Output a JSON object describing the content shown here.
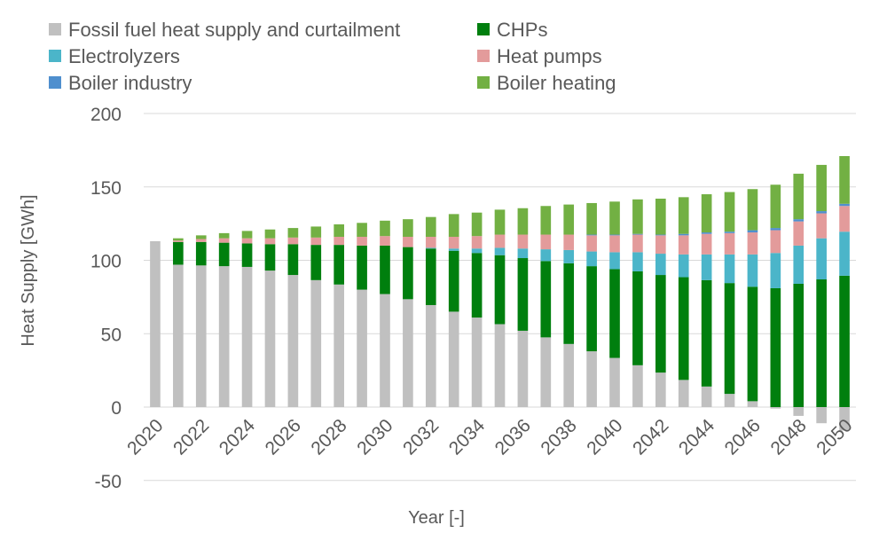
{
  "chart_data": {
    "type": "bar",
    "stacked": true,
    "title": "",
    "xlabel": "Year [-]",
    "ylabel": "Heat Supply [GWh]",
    "ylim": [
      -50,
      200
    ],
    "yticks": [
      -50,
      0,
      50,
      100,
      150,
      200
    ],
    "grid": true,
    "legend_position": "top",
    "categories": [
      "2020",
      "2021",
      "2022",
      "2023",
      "2024",
      "2025",
      "2026",
      "2027",
      "2028",
      "2029",
      "2030",
      "2031",
      "2032",
      "2033",
      "2034",
      "2035",
      "2036",
      "2037",
      "2038",
      "2039",
      "2040",
      "2041",
      "2042",
      "2043",
      "2044",
      "2045",
      "2046",
      "2047",
      "2048",
      "2049",
      "2050"
    ],
    "xtick_labels": [
      "2020",
      "2022",
      "2024",
      "2026",
      "2028",
      "2030",
      "2032",
      "2034",
      "2036",
      "2038",
      "2040",
      "2042",
      "2044",
      "2046",
      "2048",
      "2050"
    ],
    "series": [
      {
        "name": "Fossil fuel heat supply and curtailment",
        "color": "#c0c0c0",
        "values": [
          113,
          97,
          96.5,
          96,
          95.5,
          93,
          90,
          86.5,
          83.5,
          80,
          77,
          73.5,
          69.5,
          65,
          61,
          56.5,
          52,
          47.5,
          43,
          38,
          33.5,
          28.5,
          23.5,
          18.5,
          14,
          9,
          4,
          -1,
          -6,
          -11,
          -16
        ]
      },
      {
        "name": "CHPs",
        "color": "#007f0e",
        "values": [
          0,
          15.5,
          16,
          16,
          16,
          18,
          21,
          24,
          27,
          30,
          33,
          35.5,
          38.5,
          41.5,
          44,
          47,
          49.5,
          52,
          55,
          58,
          60.5,
          64,
          66.5,
          70,
          72.5,
          75.5,
          78,
          81,
          84,
          87,
          89.5
        ]
      },
      {
        "name": "Electrolyzers",
        "color": "#4bb5c9",
        "values": [
          0,
          0,
          0,
          0,
          0,
          0,
          0,
          0,
          0,
          0,
          0,
          0,
          0.5,
          1.5,
          3,
          5,
          6.5,
          8,
          9,
          10,
          11.5,
          13,
          14.5,
          15.5,
          17.5,
          19.5,
          22,
          24,
          26,
          28,
          30
        ]
      },
      {
        "name": "Heat pumps",
        "color": "#e39b9b",
        "values": [
          0,
          1,
          2,
          3,
          3.5,
          4,
          4.5,
          5,
          5.5,
          6,
          6.5,
          7,
          7.5,
          8,
          8.5,
          9,
          9.5,
          10,
          10.5,
          11,
          11.5,
          12,
          12.5,
          13,
          14,
          14.5,
          15,
          15.5,
          16.5,
          17,
          17.5
        ]
      },
      {
        "name": "Boiler industry",
        "color": "#4f8fce",
        "values": [
          0,
          0,
          0,
          0,
          0,
          0,
          0,
          0,
          0,
          0,
          0,
          0,
          0,
          0,
          0,
          0,
          0,
          0,
          0,
          0.5,
          0.5,
          0.5,
          0.5,
          1,
          1,
          1,
          1.5,
          1.5,
          1.5,
          1.5,
          1.5
        ]
      },
      {
        "name": "Boiler heating",
        "color": "#72b043",
        "values": [
          0,
          1.5,
          2.5,
          3.5,
          5,
          6,
          6.5,
          7.5,
          8.5,
          9.5,
          10.5,
          12,
          13.5,
          15.5,
          16,
          17,
          18,
          19.5,
          20.5,
          21.5,
          22.5,
          23.5,
          24.5,
          25,
          26,
          27,
          28,
          29.5,
          31,
          31.5,
          32.5
        ]
      }
    ],
    "legend": [
      {
        "label": "Fossil fuel heat supply and curtailment",
        "color": "#c0c0c0"
      },
      {
        "label": "CHPs",
        "color": "#007f0e"
      },
      {
        "label": "Electrolyzers",
        "color": "#4bb5c9"
      },
      {
        "label": "Heat pumps",
        "color": "#e39b9b"
      },
      {
        "label": "Boiler industry",
        "color": "#4f8fce"
      },
      {
        "label": "Boiler heating",
        "color": "#72b043"
      }
    ]
  }
}
